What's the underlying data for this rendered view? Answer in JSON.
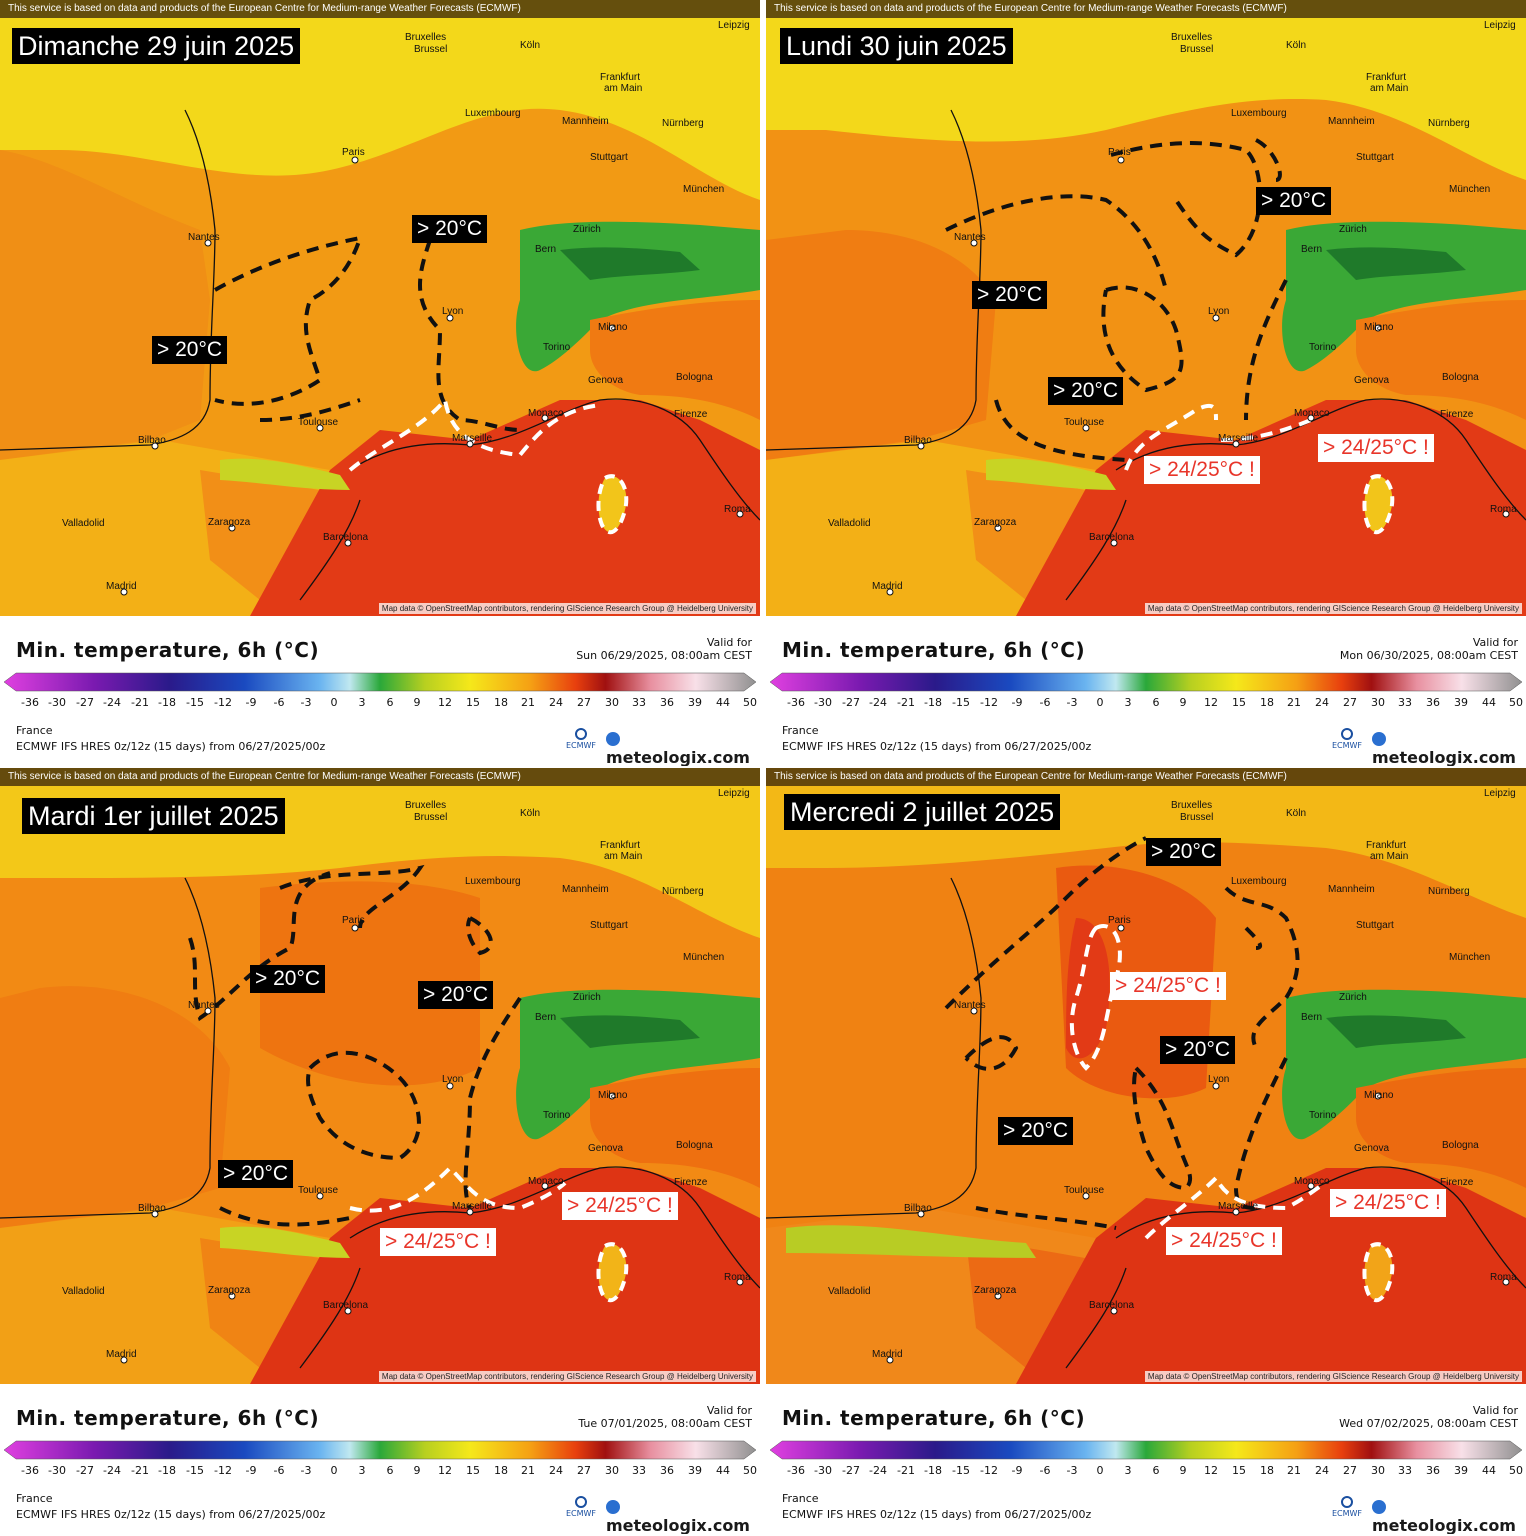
{
  "colors": {
    "ocean_hot": "#e23a16",
    "land_warm": "#f07d12",
    "land_mild": "#f5b014",
    "north_yellow": "#f3d81a",
    "alps_green": "#3aa836",
    "contour_black": "#111111",
    "contour_white": "#ffffff",
    "label_red": "#e8352a"
  },
  "common": {
    "attribution_top": "This service is based on data and products of the European Centre for Medium-range Weather Forecasts (ECMWF)",
    "attribution_map": "Map data © OpenStreetMap contributors, rendering GIScience Research Group @ Heidelberg University",
    "footer_title": "Min. temperature, 6h (°C)",
    "valid_for": "Valid for",
    "region": "France",
    "model": "ECMWF IFS HRES 0z/12z (15 days) from  06/27/2025/00z",
    "logo_ecmwf": "ECMWF",
    "logo_meteologix": "meteologix.com",
    "colorbar_ticks": [
      "-36",
      "-30",
      "-27",
      "-24",
      "-21",
      "-18",
      "-15",
      "-12",
      "-9",
      "-6",
      "-3",
      "0",
      "3",
      "6",
      "9",
      "12",
      "15",
      "18",
      "21",
      "24",
      "27",
      "30",
      "33",
      "36",
      "39",
      "44",
      "50"
    ],
    "cities": [
      "Bruxelles Brussel",
      "Köln",
      "Leipzig",
      "Frankfurt am Main",
      "Luxembourg",
      "Mannheim",
      "Nürnberg",
      "Paris",
      "Stuttgart",
      "München",
      "Nantes",
      "Zürich",
      "Bern",
      "Lyon",
      "Milano",
      "Torino",
      "Genova",
      "Bologna",
      "Toulouse",
      "Marseille",
      "Monaco",
      "Firenze",
      "Bilbao",
      "Valladolid",
      "Zaragoza",
      "Barcelona",
      "Madrid",
      "Roma"
    ]
  },
  "panels": [
    {
      "date_title": "Dimanche 29 juin 2025",
      "valid_time": "Sun 06/29/2025, 08:00am CEST",
      "labels_black": [
        "> 20°C",
        "> 20°C"
      ],
      "labels_white": []
    },
    {
      "date_title": "Lundi 30 juin 2025",
      "valid_time": "Mon 06/30/2025, 08:00am CEST",
      "labels_black": [
        "> 20°C",
        "> 20°C",
        "> 20°C"
      ],
      "labels_white": [
        "> 24/25°C !",
        "> 24/25°C !"
      ]
    },
    {
      "date_title": "Mardi 1er juillet 2025",
      "valid_time": "Tue 07/01/2025, 08:00am CEST",
      "labels_black": [
        "> 20°C",
        "> 20°C",
        "> 20°C"
      ],
      "labels_white": [
        "> 24/25°C !",
        "> 24/25°C !"
      ]
    },
    {
      "date_title": "Mercredi 2 juillet 2025",
      "valid_time": "Wed 07/02/2025, 08:00am CEST",
      "labels_black": [
        "> 20°C",
        "> 20°C",
        "> 20°C"
      ],
      "labels_white": [
        "> 24/25°C !",
        "> 24/25°C !",
        "> 24/25°C !"
      ]
    }
  ]
}
